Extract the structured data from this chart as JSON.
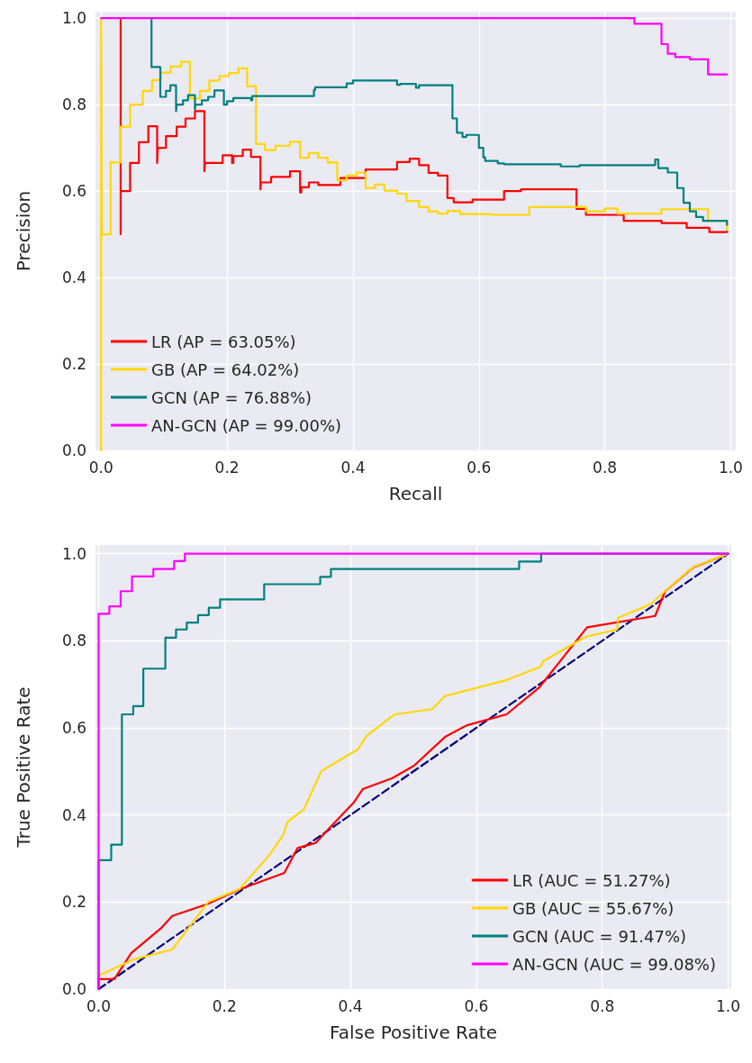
{
  "chart_data": [
    {
      "type": "step",
      "xlabel": "Recall",
      "ylabel": "Precision",
      "xlim": [
        -0.009,
        1.008
      ],
      "ylim": [
        0,
        1.015
      ],
      "xticks": [
        {
          "value": 0,
          "label": "0.0"
        },
        {
          "value": 0.2,
          "label": "0.2"
        },
        {
          "value": 0.4,
          "label": "0.4"
        },
        {
          "value": 0.6,
          "label": "0.6"
        },
        {
          "value": 0.8,
          "label": "0.8"
        },
        {
          "value": 1,
          "label": "1.0"
        }
      ],
      "yticks": [
        {
          "value": 0,
          "label": "0.0"
        },
        {
          "value": 0.2,
          "label": "0.2"
        },
        {
          "value": 0.4,
          "label": "0.4"
        },
        {
          "value": 0.6,
          "label": "0.6"
        },
        {
          "value": 0.8,
          "label": "0.8"
        },
        {
          "value": 1,
          "label": "1.0"
        }
      ],
      "grid": true,
      "legend": "bottom left",
      "series": [
        {
          "name": "LR (AP = 63.05%)",
          "color": "#ff0000",
          "x": [
            0.031,
            0.031,
            0.031,
            0.046,
            0.06,
            0.075,
            0.089,
            0.09,
            0.103,
            0.12,
            0.134,
            0.149,
            0.164,
            0.165,
            0.193,
            0.208,
            0.21,
            0.225,
            0.238,
            0.253,
            0.254,
            0.27,
            0.3,
            0.316,
            0.318,
            0.33,
            0.345,
            0.38,
            0.42,
            0.47,
            0.49,
            0.505,
            0.52,
            0.535,
            0.55,
            0.56,
            0.59,
            0.64,
            0.667,
            0.755,
            0.77,
            0.83,
            0.89,
            0.93,
            0.966,
            0.994
          ],
          "values": [
            0.5,
            1.0,
            0.6,
            0.665,
            0.713,
            0.75,
            0.665,
            0.7,
            0.727,
            0.749,
            0.768,
            0.785,
            0.646,
            0.665,
            0.683,
            0.665,
            0.681,
            0.696,
            0.679,
            0.604,
            0.62,
            0.633,
            0.646,
            0.597,
            0.609,
            0.62,
            0.614,
            0.63,
            0.65,
            0.667,
            0.675,
            0.66,
            0.642,
            0.636,
            0.584,
            0.574,
            0.58,
            0.6,
            0.604,
            0.559,
            0.545,
            0.531,
            0.526,
            0.515,
            0.505,
            0.508
          ]
        },
        {
          "name": "GB (AP = 64.02%)",
          "color": "#ffd700",
          "x": [
            0,
            0,
            0.001,
            0.015,
            0.031,
            0.046,
            0.066,
            0.081,
            0.095,
            0.11,
            0.127,
            0.141,
            0.157,
            0.172,
            0.188,
            0.203,
            0.218,
            0.232,
            0.246,
            0.26,
            0.277,
            0.3,
            0.316,
            0.33,
            0.345,
            0.36,
            0.375,
            0.39,
            0.406,
            0.42,
            0.435,
            0.45,
            0.47,
            0.485,
            0.505,
            0.52,
            0.535,
            0.55,
            0.57,
            0.62,
            0.68,
            0.77,
            0.8,
            0.82,
            0.89,
            0.964,
            0.994
          ],
          "values": [
            0,
            1.0,
            0.5,
            0.666,
            0.749,
            0.8,
            0.832,
            0.857,
            0.874,
            0.888,
            0.899,
            0.814,
            0.832,
            0.856,
            0.866,
            0.873,
            0.884,
            0.843,
            0.709,
            0.695,
            0.705,
            0.714,
            0.677,
            0.688,
            0.677,
            0.666,
            0.625,
            0.636,
            0.643,
            0.607,
            0.615,
            0.601,
            0.594,
            0.577,
            0.563,
            0.553,
            0.548,
            0.554,
            0.547,
            0.545,
            0.563,
            0.553,
            0.56,
            0.548,
            0.558,
            0.531,
            0.51
          ]
        },
        {
          "name": "GCN (AP = 76.88%)",
          "color": "#008080",
          "x": [
            0.08,
            0.08,
            0.094,
            0.103,
            0.11,
            0.119,
            0.12,
            0.13,
            0.138,
            0.149,
            0.15,
            0.16,
            0.17,
            0.18,
            0.195,
            0.2,
            0.21,
            0.238,
            0.24,
            0.338,
            0.34,
            0.39,
            0.4,
            0.47,
            0.475,
            0.5,
            0.505,
            0.558,
            0.565,
            0.574,
            0.58,
            0.6,
            0.607,
            0.61,
            0.63,
            0.64,
            0.73,
            0.76,
            0.88,
            0.885,
            0.9,
            0.915,
            0.925,
            0.935,
            0.945,
            0.956,
            0.994
          ],
          "values": [
            1.0,
            0.887,
            0.818,
            0.832,
            0.845,
            0.785,
            0.8,
            0.81,
            0.822,
            0.789,
            0.8,
            0.81,
            0.818,
            0.833,
            0.8,
            0.808,
            0.815,
            0.81,
            0.82,
            0.834,
            0.84,
            0.849,
            0.856,
            0.846,
            0.848,
            0.839,
            0.845,
            0.768,
            0.735,
            0.725,
            0.73,
            0.7,
            0.678,
            0.67,
            0.664,
            0.662,
            0.657,
            0.66,
            0.673,
            0.653,
            0.643,
            0.607,
            0.573,
            0.553,
            0.54,
            0.531,
            0.522
          ]
        },
        {
          "name": "AN-GCN (AP = 99.00%)",
          "color": "#ff00ff",
          "x": [
            0,
            0.847,
            0.89,
            0.9,
            0.912,
            0.935,
            0.964,
            0.994
          ],
          "values": [
            1.0,
            0.987,
            0.94,
            0.918,
            0.91,
            0.905,
            0.87,
            0.87
          ]
        }
      ]
    },
    {
      "type": "line",
      "xlabel": "False Positive Rate",
      "ylabel": "True Positive Rate",
      "xlim": [
        -0.005,
        1.005
      ],
      "ylim": [
        0,
        1.02
      ],
      "xticks": [
        {
          "value": 0,
          "label": "0.0"
        },
        {
          "value": 0.2,
          "label": "0.2"
        },
        {
          "value": 0.4,
          "label": "0.4"
        },
        {
          "value": 0.6,
          "label": "0.6"
        },
        {
          "value": 0.8,
          "label": "0.8"
        },
        {
          "value": 1,
          "label": "1.0"
        }
      ],
      "yticks": [
        {
          "value": 0,
          "label": "0.0"
        },
        {
          "value": 0.2,
          "label": "0.2"
        },
        {
          "value": 0.4,
          "label": "0.4"
        },
        {
          "value": 0.6,
          "label": "0.6"
        },
        {
          "value": 0.8,
          "label": "0.8"
        },
        {
          "value": 1,
          "label": "1.0"
        }
      ],
      "grid": true,
      "legend": "bottom right",
      "series": [
        {
          "name": "LR (AUC = 51.27%)",
          "color": "#ff0000",
          "x": [
            0,
            0,
            0.025,
            0.052,
            0.1,
            0.117,
            0.174,
            0.222,
            0.295,
            0.316,
            0.345,
            0.37,
            0.406,
            0.42,
            0.466,
            0.501,
            0.551,
            0.585,
            0.648,
            0.7,
            0.776,
            0.884,
            0.9,
            0.945,
            1
          ],
          "values": [
            0,
            0.023,
            0.023,
            0.083,
            0.141,
            0.168,
            0.196,
            0.228,
            0.267,
            0.324,
            0.336,
            0.375,
            0.43,
            0.46,
            0.484,
            0.513,
            0.58,
            0.606,
            0.631,
            0.693,
            0.831,
            0.857,
            0.914,
            0.969,
            1
          ]
        },
        {
          "name": "GB (AUC = 55.67%)",
          "color": "#ffd700",
          "x": [
            0,
            0.055,
            0.117,
            0.174,
            0.224,
            0.27,
            0.293,
            0.3,
            0.326,
            0.354,
            0.412,
            0.426,
            0.47,
            0.53,
            0.55,
            0.648,
            0.702,
            0.706,
            0.775,
            0.824,
            0.825,
            0.877,
            0.902,
            0.945,
            1
          ],
          "values": [
            0.031,
            0.068,
            0.091,
            0.2,
            0.23,
            0.306,
            0.353,
            0.384,
            0.413,
            0.501,
            0.551,
            0.582,
            0.631,
            0.643,
            0.673,
            0.71,
            0.74,
            0.753,
            0.81,
            0.826,
            0.853,
            0.884,
            0.917,
            0.97,
            1
          ]
        },
        {
          "name": "GCN (AUC = 91.47%)",
          "type": "step",
          "color": "#008080",
          "x": [
            0,
            0,
            0.02,
            0.037,
            0.055,
            0.071,
            0.106,
            0.123,
            0.14,
            0.158,
            0.175,
            0.193,
            0.263,
            0.352,
            0.369,
            0.668,
            0.703,
            1
          ],
          "values": [
            0,
            0.296,
            0.332,
            0.631,
            0.65,
            0.736,
            0.807,
            0.826,
            0.842,
            0.859,
            0.876,
            0.895,
            0.93,
            0.947,
            0.965,
            0.982,
            1,
            1
          ]
        },
        {
          "name": "AN-GCN (AUC = 99.08%)",
          "type": "step",
          "color": "#ff00ff",
          "x": [
            0,
            0,
            0.017,
            0.035,
            0.053,
            0.087,
            0.12,
            0.137,
            1
          ],
          "values": [
            0,
            0.862,
            0.879,
            0.914,
            0.948,
            0.965,
            0.983,
            1,
            1
          ]
        },
        {
          "color": "#000080",
          "line_style": "dashed",
          "x": [
            0,
            1
          ],
          "values": [
            0,
            1
          ]
        }
      ]
    }
  ]
}
